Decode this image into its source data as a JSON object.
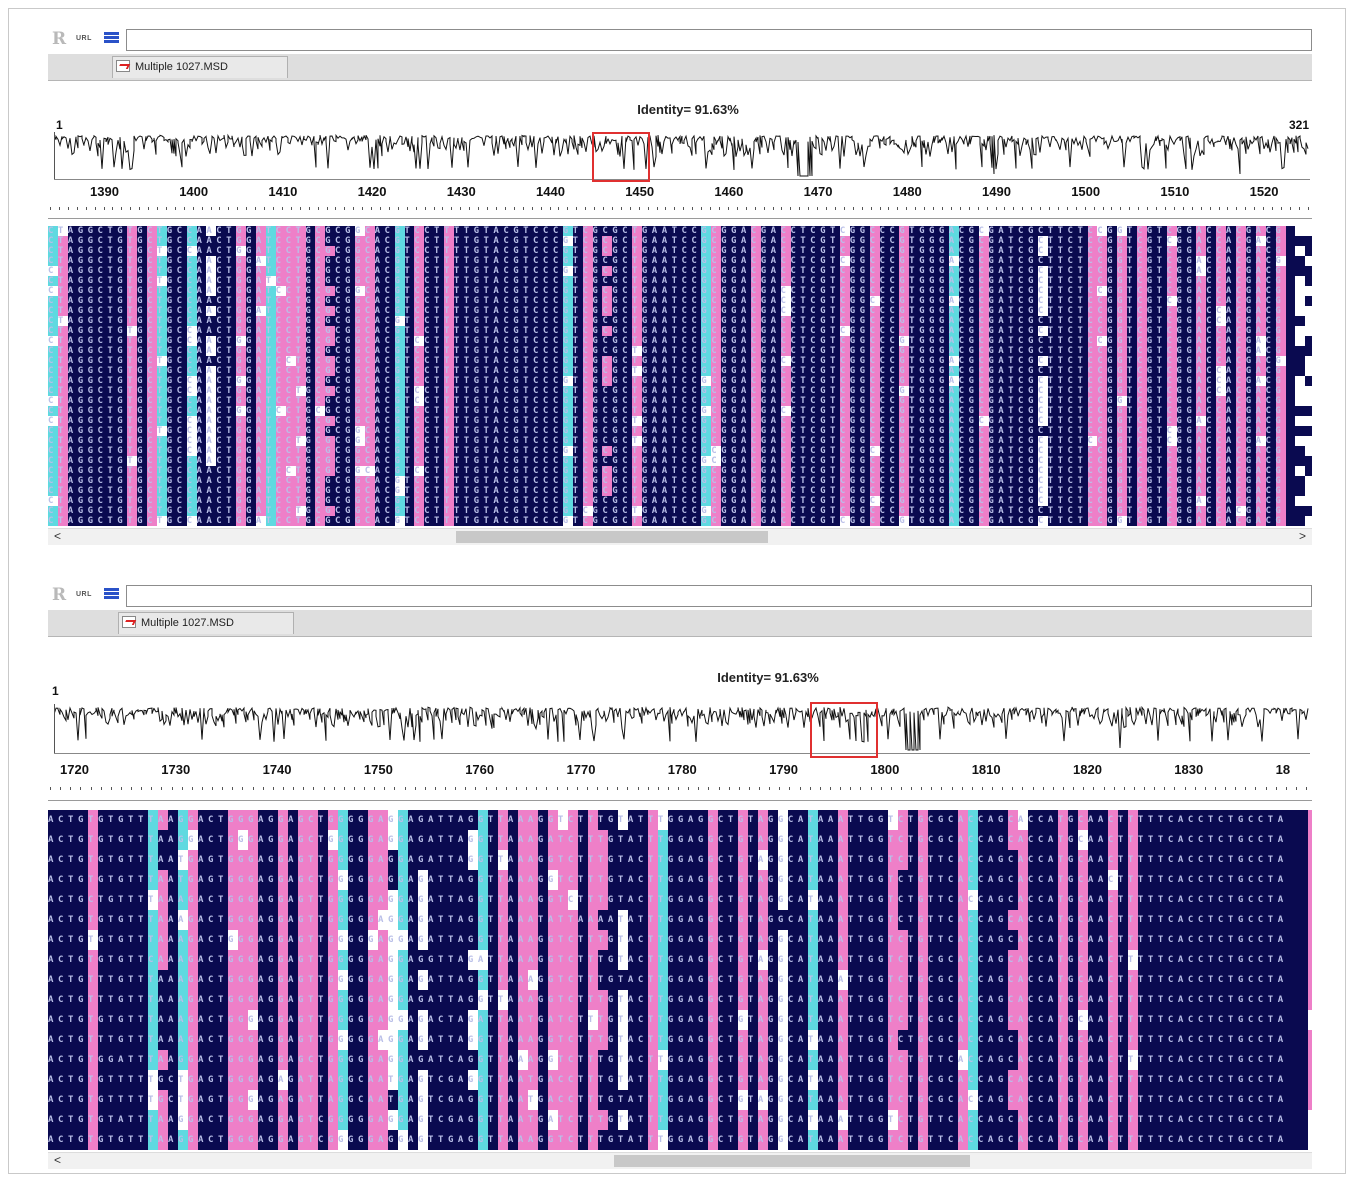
{
  "colors": {
    "background": "#0a0a50",
    "mismatch_pink": "#ee7fc8",
    "mismatch_cyan": "#5fd9e0",
    "gap_white": "#ffffff",
    "selection_red": "#e03030"
  },
  "panels": [
    {
      "toolbar": {
        "r_label": "R",
        "url_label": "URL",
        "db_icon": "database-icon"
      },
      "tab": {
        "label": "Multiple 1027.MSD",
        "icon": "chart-icon"
      },
      "identity": "Identity= 91.63%",
      "profile_start": "1",
      "profile_end": "321",
      "ruler_ticks": [
        "1390",
        "1400",
        "1410",
        "1420",
        "1430",
        "1440",
        "1450",
        "1460",
        "1470",
        "1480",
        "1490",
        "1500",
        "1510",
        "1520"
      ],
      "scroll": {
        "left_arrow": "<",
        "right_arrow": ">"
      },
      "rows": [
        "CTAGGCTGTGCTGCCAACTGGATCCTGCGCGGCACGTCCTTTTGTACGTCCCGTCGCGCTGAATCCGCGGACGACCTCGTCGGCCCGTGGGACGCGATCGCTTCTCCGGTCGTCGGACCACGACG",
        "CTAGGCTGTGCTGCCAACTGGATCCTGCGCGGCACGTCCTTTTGTACGTCCCGTCGCGCTGAATCCGCGGACGACCTCGTCGGCCCGTGGGACGCGATCGCTTCTCCGGTCGTCGGACCACGACG",
        "CTAGGCTGTGCTGCCAACTGGATCCTGCGCGGCACGTCCTTTTGTACGTCCCGTCGCGCTGAATCCGCGGACGACCTCGTCGGCCCGTGGGACGCGATCGCTTCTCCGGTCGTCGGACCACGACG",
        "CTAGGCTGTGCTGCCAACTGGATCCTGCGCGGCACGTCCTTTTGTACGTCCCGTCGCGCTGAATCCGCGGACGACCTCGTCGGCCCGTGGGACGCGATCGCTTCTCCGGTCGTCGGACCACGACG",
        "CTAGGCTGTGCTGCCAACTGGATCCTGCGCGGCACGTCCTTTTGTACGTCCCGTCGCGCTGAATCCGCGGACGACCTCGTCGGCCCGTGGGACGCGATCGCTTCTCCGGTCGTCGGACCACGACG",
        "CTAGGCTGTGCTGCCAACTGGATCCTGCGCGGCACGTCCTTTTGTACGTCCCGTCGCGCTGAATCCGCGGACGACCTCGTCGGCCCGTGGGACGCGATCGCTTCTCCGGTCGTCGGACCACGACG",
        "CTAGGCTGTGCTGCCAACTGGATCCTGCGCGGCACGTCCTTTTGTACGTCCCGTCGCGCTGAATCCGCGGACGACCTCGTCGGCCCGTGGGACGCGATCGCTTCTCCGGTCGTCGGACCACGACG",
        "CTAGGCTGTGCTGCCAACTGGATCCTGCGCGGCACGTCCTTTTGTACGTCCCGTCGCGCTGAATCCGCGGACGACCTCGTCGGCCCGTGGGACGCGATCGCTTCTCCGGTCGTCGGACCACGACG",
        "CTAGGCTGTGCTGCCAACTGGATCCTGCGCGGCACGTCCTTTTGTACGTCCCGTCGCGCTGAATCCGCGGACGACCTCGTCGGCCCGTGGGACGCGATCGCTTCTCCGGTCGTCGGACCACGACG",
        "CTAGGCTGTGCTGCCAACTGGATCCTGCGCGGCACGTCCTTTTGTACGTCCCGTCGCGCTGAATCCGCGGACGACCTCGTCGGCCCGTGGGACGCGATCGCTTCTCCGGTCGTCGGACCACGACG",
        "CTAGGCTGTGCTGCCAACTGGATCCTGCGCGGCACGTCCTTTTGTACGTCCCGTCGCGCTGAATCCGCGGACGACCTCGTCGGCCCGTGGGACGCGATCGCTTCTCCGGTCGTCGGACCACGACG",
        "CTAGGCTGTGCTGCCAACTGGATCCTGCGCGGCACGTCCTTTTGTACGTCCCGTCGCGCTGAATCCGCGGACGACCTCGTCGGCCCGTGGGACGCGATCGCTTCTCCGGTCGTCGGACCACGACG",
        "CTAGGCTGTGCTGCCAACTGGATCCTGCGCGGCACGTCCTTTTGTACGTCCCGTCGCGCTGAATCCGCGGACGACCTCGTCGGCCCGTGGGACGCGATCGCTTCTCCGGTCGTCGGACCACGACG",
        "CTAGGCTGTGCTGCCAACTGGATCCTGCGCGGCACGTCCTTTTGTACGTCCCGTCGCGCTGAATCCGCGGACGACCTCGTCGGCCCGTGGGACGCGATCGCTTCTCCGGTCGTCGGACCACGACG",
        "CTAGGCTGTGCTGCCAACTGGATCCTGCGCGGCACGTCCTTTTGTACGTCCCGTCGCGCTGAATCCGCGGACGACCTCGTCGGCCCGTGGGACGCGATCGCTTCTCCGGTCGTCGGACCACGACG",
        "CTAGGCTGTGCTGCCAACTGGATCCTGCGCGGCACGTCCTTTTGTACGTCCCGTCGCGCTGAATCCGCGGACGACCTCGTCGGCCCGTGGGACGCGATCGCTTCTCCGGTCGTCGGACCACGACG",
        "CTAGGCTGTGCTGCCAACTGGATCCTGCGCGGCACGTCCTTTTGTACGTCCCGTCGCGCTGAATCCGCGGACGACCTCGTCGGCCCGTGGGACGCGATCGCTTCTCCGGTCGTCGGACCACGACG",
        "CTAGGCTGTGCTGCCAACTGGATCCTGCGCGGCACGTCCTTTTGTACGTCCCGTCGCGCTGAATCCGCGGACGACCTCGTCGGCCCGTGGGACGCGATCGCTTCTCCGGTCGTCGGACCACGACG",
        "CTAGGCTGTGCTGCCAACTGGATCCTGCGCGGCACGTCCTTTTGTACGTCCCGTCGCGCTGAATCCGCGGACGACCTCGTCGGCCCGTGGGACGCGATCGCTTCTCCGGTCGTCGGACCACGACG",
        "CTAGGCTGTGCTGCCAACTGGATCCTGCGCGGCACGTCCTTTTGTACGTCCCGTCGCGCTGAATCCGCGGACGACCTCGTCGGCCCGTGGGACGCGATCGCTTCTCCGGTCGTCGGACCACGACG",
        "CTAGGCTGTGCTGCCAACTGGATCCTGCGCGGCACGTCCTTTTGTACGTCCCGTCGCGCTGAATCCGCGGACGACCTCGTCGGCCCGTGGGACGCGATCGCTTCTCCGGTCGTCGGACCACGACG",
        "CTAGGCTGTGCTGCCAACTGGATCCTGCGCGGCACGTCCTTTTGTACGTCCCGTCGCGCTGAATCCGCGGACGACCTCGTCGGCCCGTGGGACGCGATCGCTTCTCCGGTCGTCGGACCACGACG",
        "CTAGGCTGTGCTGCCAACTGGATCCTGCGCGGCACGTCCTTTTGTACGTCCCGTCGCGCTGAATCCGCGGACGACCTCGTCGGCCCGTGGGACGCGATCGCTTCTCCGGTCGTCGGACCACGACG",
        "CTAGGCTGTGCTGCCAACTGGATCCTGCGCGGCACGTCCTTTTGTACGTCCCGTCGCGCTGAATCCGCGGACGACCTCGTCGGCCCGTGGGACGCGATCGCTTCTCCGGTCGTCGGACCACGACG",
        "CTAGGCTGTGCTGCCAACTGGATCCTGCGCGGCACGTCCTTTTGTACGTCCCGTCGCGCTGAATCCGCGGACGACCTCGTCGGCCCGTGGGACGCGATCGCTTCTCCGGTCGTCGGACCACGACG",
        "CTAGGCTGTGCTGCCAACTGGATCCTGCGCGGCACGTCCTTTTGTACGTCCCGTCGCGCTGAATCCGCGGACGACCTCGTCGGCCCGTGGGACGCGATCGCTTCTCCGGTCGTCGGACCACGACG",
        "CTAGGCTGTGCTGCCAACTGGATCCTGCGCGGCACGTCCTTTTGTACGTCCCGTCGCGCTGAATCCGCGGACGACCTCGTCGGCCCGTGGGACGCGATCGCTTCTCCGGTCGTCGGACCACGACG",
        "CTAGGCTGTGCTGCCAACTGGATCCTGCGCGGCACGTCCTTTTGTACGTCCCGTCGCGCTGAATCCGCGGACGACCTCGTCGGCCCGTGGGACGCGATCGCTTCTCCGGTCGTCGGACCACGACG",
        "CTAGGCTGTGCTGCCAACTGGATCCTGCGCGGCACGTCCTTTTGTACGTCCCGTCGCGCTGAATCCGCGGACGACCTCGTCGGCCCGTGGGACGCGATCGCTTCTCCGGTCGTCGGACCACGACG",
        "CTAGGCTGTGCTGCCAACTGGATCCTGCGCGGCACGTCCTTTTGTACGTCCCGTCGCGCTGAATCCGCGGACGACCTCGTCGGCCCGTGGGACGCGATCGCTTCTCCGGTCGTCGGACCACGACG"
      ]
    },
    {
      "toolbar": {
        "r_label": "R",
        "url_label": "URL",
        "db_icon": "database-icon"
      },
      "tab": {
        "label": "Multiple 1027.MSD",
        "icon": "chart-icon"
      },
      "identity": "Identity= 91.63%",
      "profile_start": "1",
      "profile_end": "",
      "ruler_ticks": [
        "1720",
        "1730",
        "1740",
        "1750",
        "1760",
        "1770",
        "1780",
        "1790",
        "1800",
        "1810",
        "1820",
        "1830",
        "18"
      ],
      "scroll": {
        "left_arrow": "<",
        "right_arrow": ""
      },
      "rows": [
        "ACTGTGTGTTTAAGGACTGGGAGGAGCTGGGGGAGGAGATTAGGTTAAAGGTCTTTGTATTTGGAGGCTGTAGGCATAAATTGGTCTGCGCACCAGCACCATGCAACTTTTTCACCTCTGCCTA",
        "ACTGTGTGTTTAAGGACTGGGAGGAGCTGGGGGAGGAGATTAGGTTAAAGATCTTTGTATTTGGAGGCTGTAGGCATAAATTGGTCTGCGCACCAGCACCATGCAACTTTTTCACCTCTGCCTA",
        "ACTGTGTGTTTAATGAGTGGGAGGAGTTGGGGGAGGAGATTAGGTTAAAGGTCTTTGTACTTGGAGGCTGTAGGCATAAATTGGTCTGTTCACCAGCACCATGCAACTTTTTCACCTCTGCCTA",
        "ACTGTGTGTTTAATGAGTGGGAGGAGCTGGGGGAGGAGATTAGGTTAAAGGTCTTTGTACTTGGAGGCTGTAGGCATAAATTGGTCTGTTCACCAGCACCATGCAACTTTTTCACCTCTGCCTA",
        "ACTGCTGTTTTAAAGACTGGGAGGAGTTGGGGGAGGAGATTAGGTTAAAGGTCTTTGTACTTGGAGGCTGTAGGCATAAATTGGTCTGTTCACCAGCACCATGCAACTTTTTCACCTCTGCCTA",
        "ACTGTGTGTTTAAAGACTGGGAGGAGTTGGGGGAGGAGATTAGGTTAAATATTAAAATATTTGGAGGCTGTAGGCATAAATTGGTCTGTTCACCAGCACCATGCAACTTTTTCACCTCTGCCTA",
        "ACTGTGTGTTTAAAGACTGGGAGGAGTTGGGGGAGGAGATTAGGTTAAAGGTCTTTGTACTTGGAGGCTGTAGGCATAAATTGGTCTGTTCACCAGCACCATGCAACTTTTTCACCTCTGCCTA",
        "ACTGTGTGTTCAAAGACTGGGAGGAGTTGGGGGAGGAGGTTAGATTAAAGGTCTTTGTACTTGGAGGCTGTAGGCATAAATTGGTCTGCGCACCAGCACCATGCAACTTTTTCACCTCTGCCTA",
        "ACTGTTTGTTTAAAGACTGGGAGGAGTTGGGGGAGGAGATTAGGTTAAAGGTCTTTGTACTTGGAGGCTGTAGGCATAAATTGGTCTGCGCACCAGCACCATGCAACTTTTTCACCTCTGCCTA",
        "ACTGTTTGTTTAAAGACTGGGAGGAGTTGGGGGAGGAGATTAGGTTAAAGGTCTTTGTACTTGGAGGCTGTAGGCATAAATTGGTCTGCGCACCAGCACCATGCAACTTTTTCACCTCTGCCTA",
        "ACTGTGTGTTTAAAGACTGGGAGGAGTTGGGGGAGGAGACTAGATTAATGATCTTTGTACTTGGAGGCTGTAGGCATAAATTGGTCTGCGCACCAGCACCATGCAACTTTTTCACCTCTGCCTA",
        "ACTGTTTGTTTAAAGACTGGGAGGAGTTGGGGGAGGAGATTAGGTTAAAGGTCTTTGTACTTGGAGGCTGTAGGCATAAATTGGTCTGCGCACCAGCACCATGCAACTTTTTCACCTCTGCCTA",
        "ACTGTGGATTTAAGGACTGGGAGGAGCTGGGGGAGGAGATCAGGTTAAAGGTCTTTGTACTTGGAGGCTGTAGGCATAAATTGGTCTGTTCACCAGCACCATGCAACTTTTTCACCTCTGCCTA",
        "ACTGTGTTTTTGCTGAGTGGGAGAGATTAGGCAATGAGTCGAGGTTAATGACCTTTGTATTTGGAGGCTGTAGGCATAAATTGGTCTGCGCACCAGCACCATGTAACTTTTTCACCTCTGCCTA",
        "ACTGTGTTTTTGCTGAGTGGGAGAGATTAGGCAATGAGTCGAGGTTAATGACCTTTGTATTTGGAGGCTGTAGGCATAAATTGGTCTGCGCACCAGCACCATGTAACTTTTTCACCTCTGCCTA",
        "ACTGTGTATTTAAGGACTGGGAGGAGTCGGGGGAGGAGTCGAGGTTAATGATCTTTGTATTTGGAGGCTGTAGGCATAAATTGGTCTGTTCACCAGCACCATGCAACTTTTTCACCTCTGCCTA",
        "ACTGTGTGTTTAAGGACTGGGAGGAGTCGGGGGAGGAGTTGAGGTTAAAGGTCTTTGTATTTGGAGGCTGTAGGCATAAATTGGTCTGTTCACCAGCACCATGCAACTTTTTCACCTCTGCCTA"
      ]
    }
  ]
}
